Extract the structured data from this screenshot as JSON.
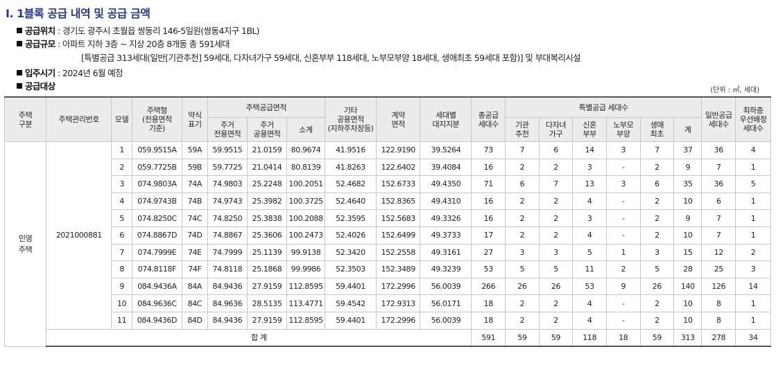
{
  "title": "I. 1블록 공급 내역 및 공급 금액",
  "info": [
    {
      "label": "공급위치",
      "value": " : 경기도 광주시 초월읍 쌍동리 146-5일원(쌍동4지구 1BL)"
    },
    {
      "label": "공급규모",
      "value": " : 아파트 지하 3층 ~ 지상 20층 8개동 총 591세대"
    },
    {
      "label": "",
      "value": "[특별공급 313세대(일반[기관추천] 59세대, 다자녀가구 59세대, 신혼부부 118세대, 노부모부양 18세대, 생애최초 59세대 포함)] 및 부대복리시설"
    },
    {
      "label": "입주시기",
      "value": " : 2024년 6월 예정"
    },
    {
      "label": "공급대상",
      "value": ""
    }
  ],
  "unit_note": "(단위 : ㎡, 세대)",
  "headers": {
    "house_type_group": "주택\n구분",
    "mgmt_no": "주택관리번호",
    "model": "모델",
    "house_type": "주택형\n(전용면적\n기준)",
    "abbr": "약식\n표기",
    "supply_area": "주택공급면적",
    "exclusive": "주거\n전용면적",
    "common": "주거\n공용면적",
    "subtotal": "소계",
    "other_common": "기타\n공용면적\n(지하주차장등)",
    "contract_area": "계약\n면적",
    "land_share": "세대별\n대지지분",
    "total_units": "총공급\n세대수",
    "special": "특별공급 세대수",
    "institution": "기관\n추천",
    "multi_child": "다자녀\n가구",
    "newlywed": "신혼\n부부",
    "elderly": "노부모\n부양",
    "first_time": "생애\n최초",
    "special_sum": "계",
    "general": "일반공급\n세대수",
    "lowest_floor": "최하층\n우선배정\n세대수"
  },
  "house_category": "민영\n주택",
  "mgmt_number": "2021000881",
  "rows": [
    [
      "1",
      "059.9515A",
      "59A",
      "59.9515",
      "21.0159",
      "80.9674",
      "41.9516",
      "122.9190",
      "39.5264",
      "73",
      "7",
      "6",
      "14",
      "3",
      "7",
      "37",
      "36",
      "4"
    ],
    [
      "2",
      "059.7725B",
      "59B",
      "59.7725",
      "21.0414",
      "80.8139",
      "41.8263",
      "122.6402",
      "39.4084",
      "16",
      "2",
      "2",
      "3",
      "-",
      "2",
      "9",
      "7",
      "1"
    ],
    [
      "3",
      "074.9803A",
      "74A",
      "74.9803",
      "25.2248",
      "100.2051",
      "52.4682",
      "152.6733",
      "49.4350",
      "71",
      "6",
      "7",
      "13",
      "3",
      "6",
      "35",
      "36",
      "5"
    ],
    [
      "4",
      "074.9743B",
      "74B",
      "74.9743",
      "25.3982",
      "100.3725",
      "52.4640",
      "152.8365",
      "49.4310",
      "16",
      "2",
      "2",
      "4",
      "-",
      "2",
      "10",
      "6",
      "1"
    ],
    [
      "5",
      "074.8250C",
      "74C",
      "74.8250",
      "25.3838",
      "100.2088",
      "52.3595",
      "152.5683",
      "49.3326",
      "16",
      "2",
      "2",
      "3",
      "-",
      "2",
      "9",
      "7",
      "1"
    ],
    [
      "6",
      "074.8867D",
      "74D",
      "74.8867",
      "25.3606",
      "100.2473",
      "52.4026",
      "152.6499",
      "49.3733",
      "17",
      "2",
      "2",
      "4",
      "-",
      "2",
      "10",
      "7",
      "1"
    ],
    [
      "7",
      "074.7999E",
      "74E",
      "74.7999",
      "25.1139",
      "99.9138",
      "52.3420",
      "152.2558",
      "49.3161",
      "27",
      "3",
      "3",
      "5",
      "1",
      "3",
      "15",
      "12",
      "2"
    ],
    [
      "8",
      "074.8118F",
      "74F",
      "74.8118",
      "25.1868",
      "99.9986",
      "52.3503",
      "152.3489",
      "49.3239",
      "53",
      "5",
      "5",
      "11",
      "2",
      "5",
      "28",
      "25",
      "3"
    ],
    [
      "9",
      "084.9436A",
      "84A",
      "84.9436",
      "27.9159",
      "112.8595",
      "59.4401",
      "172.2996",
      "56.0039",
      "266",
      "26",
      "26",
      "53",
      "9",
      "26",
      "140",
      "126",
      "14"
    ],
    [
      "10",
      "084.9636C",
      "84C",
      "84.9636",
      "28.5135",
      "113.4771",
      "59.4542",
      "172.9313",
      "56.0171",
      "18",
      "2",
      "2",
      "4",
      "-",
      "2",
      "10",
      "8",
      "1"
    ],
    [
      "11",
      "084.9436D",
      "84D",
      "84.9436",
      "27.9159",
      "112.8595",
      "59.4401",
      "172.2996",
      "56.0039",
      "18",
      "2",
      "2",
      "4",
      "-",
      "2",
      "10",
      "8",
      "1"
    ]
  ],
  "total_label": "합 계",
  "totals": [
    "591",
    "59",
    "59",
    "118",
    "18",
    "59",
    "313",
    "278",
    "34"
  ]
}
